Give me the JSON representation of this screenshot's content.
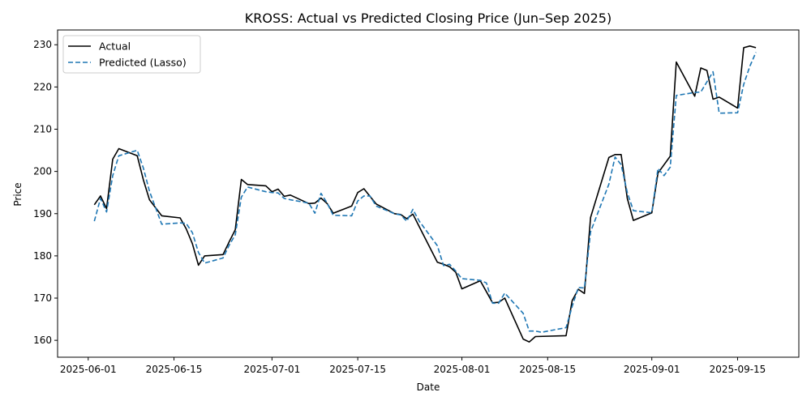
{
  "chart_data": {
    "type": "line",
    "title": "KROSS: Actual vs Predicted Closing Price (Jun–Sep 2025)",
    "xlabel": "Date",
    "ylabel": "Price",
    "xlim": [
      "2025-05-27",
      "2025-09-25"
    ],
    "ylim": [
      156,
      233.5
    ],
    "x_ticks": [
      "2025-06-01",
      "2025-06-15",
      "2025-07-01",
      "2025-07-15",
      "2025-08-01",
      "2025-08-15",
      "2025-09-01",
      "2025-09-15"
    ],
    "y_ticks": [
      160,
      170,
      180,
      190,
      200,
      210,
      220,
      230
    ],
    "grid": false,
    "legend": "top-left",
    "series": [
      {
        "name": "Actual",
        "color": "#000000",
        "style": "solid",
        "points": [
          [
            "2025-06-02",
            192.1
          ],
          [
            "2025-06-03",
            194.2
          ],
          [
            "2025-06-04",
            191.2
          ],
          [
            "2025-06-05",
            202.9
          ],
          [
            "2025-06-06",
            205.4
          ],
          [
            "2025-06-09",
            203.7
          ],
          [
            "2025-06-10",
            198.0
          ],
          [
            "2025-06-11",
            193.3
          ],
          [
            "2025-06-13",
            189.5
          ],
          [
            "2025-06-16",
            189.0
          ],
          [
            "2025-06-17",
            186.4
          ],
          [
            "2025-06-18",
            182.9
          ],
          [
            "2025-06-19",
            177.8
          ],
          [
            "2025-06-20",
            180.0
          ],
          [
            "2025-06-23",
            180.3
          ],
          [
            "2025-06-24",
            183.3
          ],
          [
            "2025-06-25",
            186.2
          ],
          [
            "2025-06-26",
            198.1
          ],
          [
            "2025-06-27",
            196.9
          ],
          [
            "2025-06-30",
            196.6
          ],
          [
            "2025-07-01",
            195.2
          ],
          [
            "2025-07-02",
            195.8
          ],
          [
            "2025-07-03",
            194.1
          ],
          [
            "2025-07-04",
            194.4
          ],
          [
            "2025-07-07",
            192.4
          ],
          [
            "2025-07-08",
            192.5
          ],
          [
            "2025-07-09",
            193.7
          ],
          [
            "2025-07-10",
            192.4
          ],
          [
            "2025-07-11",
            190.1
          ],
          [
            "2025-07-14",
            191.8
          ],
          [
            "2025-07-15",
            195.0
          ],
          [
            "2025-07-16",
            195.9
          ],
          [
            "2025-07-17",
            194.1
          ],
          [
            "2025-07-18",
            192.3
          ],
          [
            "2025-07-21",
            190.0
          ],
          [
            "2025-07-22",
            189.8
          ],
          [
            "2025-07-23",
            188.8
          ],
          [
            "2025-07-24",
            189.9
          ],
          [
            "2025-07-25",
            187.0
          ],
          [
            "2025-07-28",
            178.5
          ],
          [
            "2025-07-29",
            178.0
          ],
          [
            "2025-07-30",
            177.4
          ],
          [
            "2025-07-31",
            176.1
          ],
          [
            "2025-08-01",
            172.2
          ],
          [
            "2025-08-04",
            174.1
          ],
          [
            "2025-08-05",
            171.5
          ],
          [
            "2025-08-06",
            168.9
          ],
          [
            "2025-08-07",
            169.0
          ],
          [
            "2025-08-08",
            170.0
          ],
          [
            "2025-08-11",
            160.3
          ],
          [
            "2025-08-12",
            159.6
          ],
          [
            "2025-08-13",
            160.9
          ],
          [
            "2025-08-18",
            161.1
          ],
          [
            "2025-08-19",
            169.4
          ],
          [
            "2025-08-20",
            172.1
          ],
          [
            "2025-08-21",
            171.1
          ],
          [
            "2025-08-22",
            189.1
          ],
          [
            "2025-08-25",
            203.3
          ],
          [
            "2025-08-26",
            204.0
          ],
          [
            "2025-08-27",
            204.0
          ],
          [
            "2025-08-28",
            193.6
          ],
          [
            "2025-08-29",
            188.4
          ],
          [
            "2025-09-01",
            190.2
          ],
          [
            "2025-09-02",
            199.6
          ],
          [
            "2025-09-04",
            203.6
          ],
          [
            "2025-09-05",
            225.9
          ],
          [
            "2025-09-08",
            217.8
          ],
          [
            "2025-09-09",
            224.5
          ],
          [
            "2025-09-10",
            223.9
          ],
          [
            "2025-09-11",
            217.1
          ],
          [
            "2025-09-12",
            217.6
          ],
          [
            "2025-09-15",
            215.0
          ],
          [
            "2025-09-16",
            229.3
          ],
          [
            "2025-09-17",
            229.7
          ],
          [
            "2025-09-18",
            229.3
          ]
        ]
      },
      {
        "name": "Predicted (Lasso)",
        "color": "#1f77b4",
        "style": "dashed",
        "points": [
          [
            "2025-06-02",
            188.2
          ],
          [
            "2025-06-03",
            193.6
          ],
          [
            "2025-06-04",
            190.4
          ],
          [
            "2025-06-05",
            199.0
          ],
          [
            "2025-06-06",
            203.7
          ],
          [
            "2025-06-09",
            205.0
          ],
          [
            "2025-06-10",
            200.8
          ],
          [
            "2025-06-11",
            195.3
          ],
          [
            "2025-06-13",
            187.5
          ],
          [
            "2025-06-16",
            187.8
          ],
          [
            "2025-06-17",
            187.7
          ],
          [
            "2025-06-18",
            185.5
          ],
          [
            "2025-06-19",
            180.8
          ],
          [
            "2025-06-20",
            178.3
          ],
          [
            "2025-06-23",
            179.5
          ],
          [
            "2025-06-24",
            182.5
          ],
          [
            "2025-06-25",
            185.0
          ],
          [
            "2025-06-26",
            193.9
          ],
          [
            "2025-06-27",
            196.3
          ],
          [
            "2025-06-30",
            195.2
          ],
          [
            "2025-07-01",
            195.0
          ],
          [
            "2025-07-02",
            194.9
          ],
          [
            "2025-07-03",
            193.6
          ],
          [
            "2025-07-04",
            193.3
          ],
          [
            "2025-07-07",
            192.5
          ],
          [
            "2025-07-08",
            190.1
          ],
          [
            "2025-07-09",
            194.8
          ],
          [
            "2025-07-10",
            192.5
          ],
          [
            "2025-07-11",
            189.6
          ],
          [
            "2025-07-14",
            189.5
          ],
          [
            "2025-07-15",
            193.0
          ],
          [
            "2025-07-16",
            194.2
          ],
          [
            "2025-07-17",
            194.2
          ],
          [
            "2025-07-18",
            191.8
          ],
          [
            "2025-07-21",
            190.0
          ],
          [
            "2025-07-22",
            189.7
          ],
          [
            "2025-07-23",
            188.2
          ],
          [
            "2025-07-24",
            191.0
          ],
          [
            "2025-07-25",
            188.3
          ],
          [
            "2025-07-28",
            182.4
          ],
          [
            "2025-07-29",
            177.7
          ],
          [
            "2025-07-30",
            178.0
          ],
          [
            "2025-07-31",
            176.4
          ],
          [
            "2025-08-01",
            174.6
          ],
          [
            "2025-08-04",
            174.2
          ],
          [
            "2025-08-05",
            173.6
          ],
          [
            "2025-08-06",
            168.8
          ],
          [
            "2025-08-07",
            168.8
          ],
          [
            "2025-08-08",
            171.2
          ],
          [
            "2025-08-11",
            166.4
          ],
          [
            "2025-08-12",
            162.2
          ],
          [
            "2025-08-13",
            162.2
          ],
          [
            "2025-08-14",
            161.9
          ],
          [
            "2025-08-18",
            163.0
          ],
          [
            "2025-08-19",
            168.0
          ],
          [
            "2025-08-20",
            172.5
          ],
          [
            "2025-08-21",
            172.4
          ],
          [
            "2025-08-22",
            185.7
          ],
          [
            "2025-08-25",
            197.0
          ],
          [
            "2025-08-26",
            203.4
          ],
          [
            "2025-08-27",
            201.6
          ],
          [
            "2025-08-28",
            195.0
          ],
          [
            "2025-08-29",
            190.7
          ],
          [
            "2025-09-01",
            190.2
          ],
          [
            "2025-09-02",
            200.7
          ],
          [
            "2025-09-03",
            199.0
          ],
          [
            "2025-09-04",
            201.0
          ],
          [
            "2025-09-05",
            218.0
          ],
          [
            "2025-09-08",
            218.7
          ],
          [
            "2025-09-09",
            218.8
          ],
          [
            "2025-09-11",
            223.6
          ],
          [
            "2025-09-12",
            213.8
          ],
          [
            "2025-09-15",
            213.9
          ],
          [
            "2025-09-16",
            220.6
          ],
          [
            "2025-09-17",
            224.9
          ],
          [
            "2025-09-18",
            228.2
          ]
        ]
      }
    ]
  }
}
